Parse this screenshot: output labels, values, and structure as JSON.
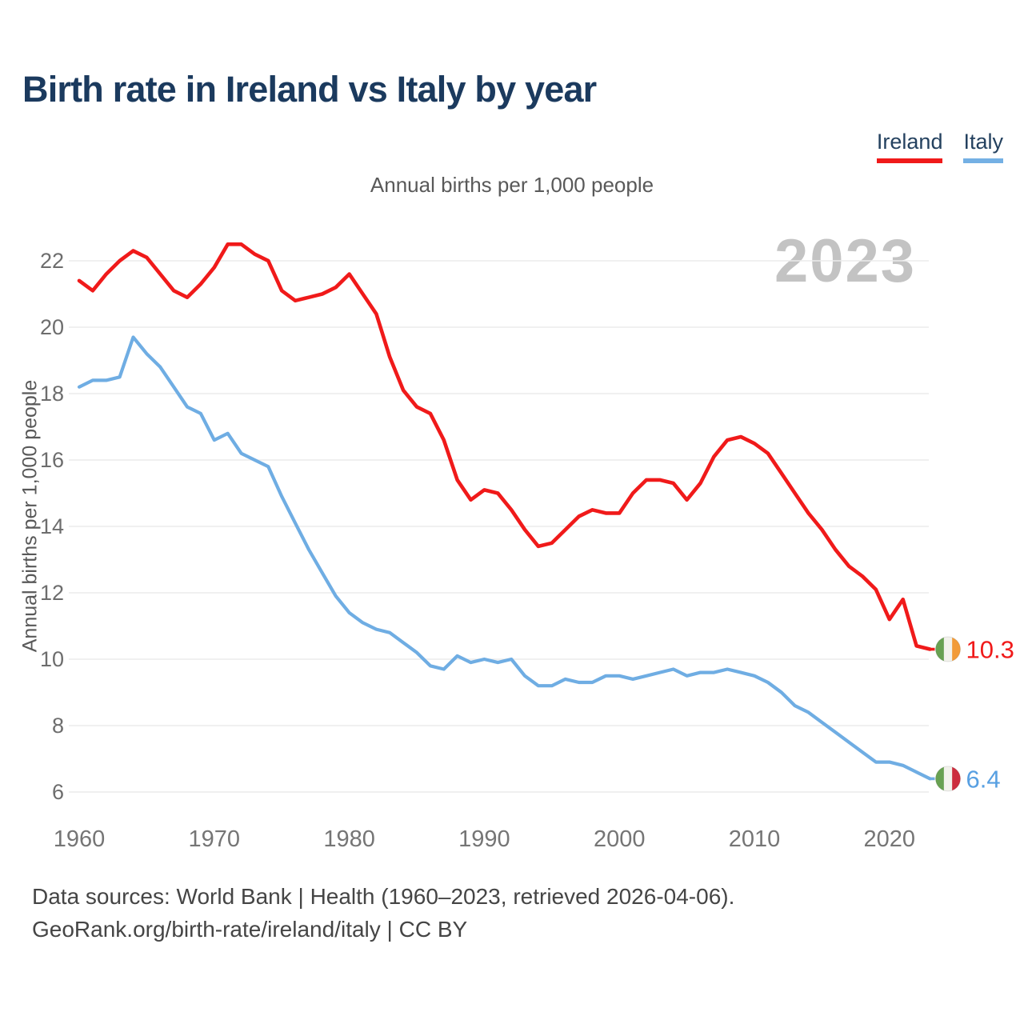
{
  "page": {
    "title": "Birth rate in Ireland vs Italy by year",
    "subtitle": "Annual births per 1,000 people",
    "watermark": "2023",
    "footer_line1": "Data sources: World Bank | Health (1960–2023, retrieved 2026-04-06).",
    "footer_line2": "GeoRank.org/birth-rate/ireland/italy | CC BY"
  },
  "legend": {
    "items": [
      {
        "label": "Ireland",
        "color": "#f01a1a"
      },
      {
        "label": "Italy",
        "color": "#74b0e4"
      }
    ]
  },
  "chart_data": {
    "type": "line",
    "title": "Birth rate in Ireland vs Italy by year",
    "subtitle": "Annual births per 1,000 people",
    "ylabel": "Annual births per 1,000 people",
    "xlabel": "",
    "grid": "horizontal",
    "legend_position": "top-right",
    "watermark": "2023",
    "ylim": [
      5.4,
      23.2
    ],
    "xlim": [
      1959.3,
      2029
    ],
    "y_ticks": [
      6,
      8,
      10,
      12,
      14,
      16,
      18,
      20,
      22
    ],
    "x_ticks": [
      1960,
      1970,
      1980,
      1990,
      2000,
      2010,
      2020
    ],
    "x": [
      1960,
      1961,
      1962,
      1963,
      1964,
      1965,
      1966,
      1967,
      1968,
      1969,
      1970,
      1971,
      1972,
      1973,
      1974,
      1975,
      1976,
      1977,
      1978,
      1979,
      1980,
      1981,
      1982,
      1983,
      1984,
      1985,
      1986,
      1987,
      1988,
      1989,
      1990,
      1991,
      1992,
      1993,
      1994,
      1995,
      1996,
      1997,
      1998,
      1999,
      2000,
      2001,
      2002,
      2003,
      2004,
      2005,
      2006,
      2007,
      2008,
      2009,
      2010,
      2011,
      2012,
      2013,
      2014,
      2015,
      2016,
      2017,
      2018,
      2019,
      2020,
      2021,
      2022,
      2023
    ],
    "series": [
      {
        "name": "Ireland",
        "color": "#f01a1a",
        "label_color": "#f01a1a",
        "end_label": "10.3",
        "flag_stripes": [
          "#68a152",
          "#f2f2ec",
          "#f29b38"
        ],
        "flag_name": "ireland-flag",
        "values": [
          21.4,
          21.1,
          21.6,
          22.0,
          22.3,
          22.1,
          21.6,
          21.1,
          20.9,
          21.3,
          21.8,
          22.5,
          22.5,
          22.2,
          22.0,
          21.1,
          20.8,
          20.9,
          21.0,
          21.2,
          21.6,
          21.0,
          20.4,
          19.1,
          18.1,
          17.6,
          17.4,
          16.6,
          15.4,
          14.8,
          15.1,
          15.0,
          14.5,
          13.9,
          13.4,
          13.5,
          13.9,
          14.3,
          14.5,
          14.4,
          14.4,
          15.0,
          15.4,
          15.4,
          15.3,
          14.8,
          15.3,
          16.1,
          16.6,
          16.7,
          16.5,
          16.2,
          15.6,
          15.0,
          14.4,
          13.9,
          13.3,
          12.8,
          12.5,
          12.1,
          11.2,
          11.8,
          10.4,
          10.3
        ]
      },
      {
        "name": "Italy",
        "color": "#6fade3",
        "label_color": "#58a0e2",
        "end_label": "6.4",
        "flag_stripes": [
          "#68a152",
          "#f2f2ec",
          "#cc2d3e"
        ],
        "flag_name": "italy-flag",
        "values": [
          18.2,
          18.4,
          18.4,
          18.5,
          19.7,
          19.2,
          18.8,
          18.2,
          17.6,
          17.4,
          16.6,
          16.8,
          16.2,
          16.0,
          15.8,
          14.9,
          14.1,
          13.3,
          12.6,
          11.9,
          11.4,
          11.1,
          10.9,
          10.8,
          10.5,
          10.2,
          9.8,
          9.7,
          10.1,
          9.9,
          10.0,
          9.9,
          10.0,
          9.5,
          9.2,
          9.2,
          9.4,
          9.3,
          9.3,
          9.5,
          9.5,
          9.4,
          9.5,
          9.6,
          9.7,
          9.5,
          9.6,
          9.6,
          9.7,
          9.6,
          9.5,
          9.3,
          9.0,
          8.6,
          8.4,
          8.1,
          7.8,
          7.5,
          7.2,
          6.9,
          6.9,
          6.8,
          6.6,
          6.4
        ]
      }
    ]
  }
}
